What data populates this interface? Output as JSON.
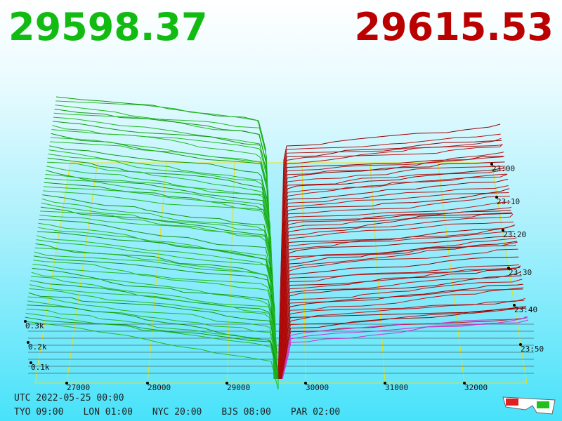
{
  "header": {
    "bid": "29598.37",
    "ask": "29615.53"
  },
  "price_axis": [
    "27000",
    "28000",
    "29000",
    "30000",
    "31000",
    "32000"
  ],
  "time_axis": [
    "23:00",
    "23:10",
    "23:20",
    "23:30",
    "23:40",
    "23:50"
  ],
  "depth_axis": [
    "0.3k",
    "0.2k",
    "0.1k"
  ],
  "footer": {
    "utc": "UTC 2022-05-25 00:00",
    "zones": [
      "TYO 09:00",
      "LON 01:00",
      "NYC 20:00",
      "BJS 08:00",
      "PAR 02:00"
    ]
  }
}
